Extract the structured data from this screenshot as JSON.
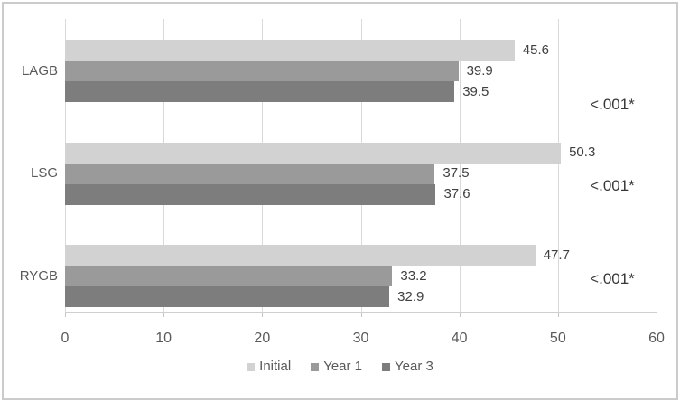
{
  "chart_data": {
    "type": "bar",
    "orientation": "horizontal",
    "title": "",
    "xlabel": "",
    "ylabel": "",
    "xlim": [
      0,
      60
    ],
    "x_ticks": [
      0,
      10,
      20,
      30,
      40,
      50,
      60
    ],
    "grid": "vertical",
    "legend_position": "bottom",
    "categories": [
      "LAGB",
      "LSG",
      "RYGB"
    ],
    "series": [
      {
        "name": "Initial",
        "color": "#d2d2d2",
        "values": [
          45.6,
          50.3,
          47.7
        ]
      },
      {
        "name": "Year 1",
        "color": "#9a9a9a",
        "values": [
          39.9,
          37.5,
          33.2
        ]
      },
      {
        "name": "Year 3",
        "color": "#7d7d7d",
        "values": [
          39.5,
          37.6,
          32.9
        ]
      }
    ],
    "value_labels_decimals": 1,
    "annotations": [
      {
        "category": "LAGB",
        "text": "<.001*"
      },
      {
        "category": "LSG",
        "text": "<.001*"
      },
      {
        "category": "RYGB",
        "text": "<.001*"
      }
    ]
  }
}
